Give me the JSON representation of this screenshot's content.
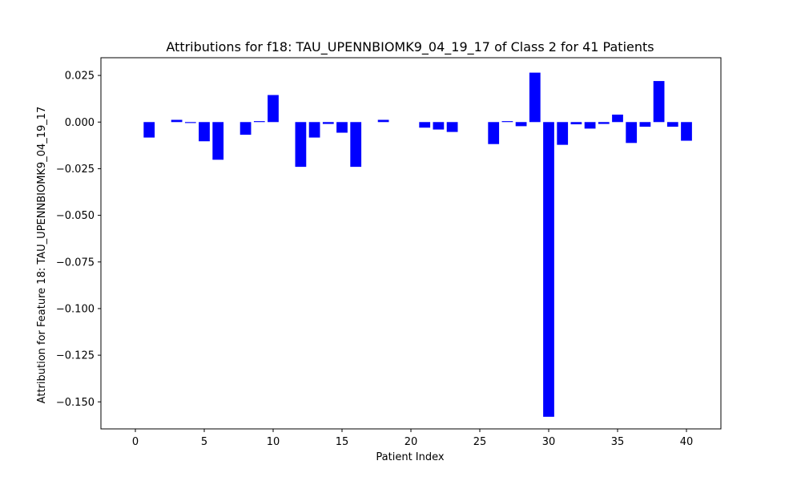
{
  "chart_data": {
    "type": "bar",
    "title": "Attributions for f18: TAU_UPENNBIOMK9_04_19_17 of Class 2 for 41 Patients",
    "xlabel": "Patient Index",
    "ylabel": "Attribution for Feature 18: TAU_UPENNBIOMK9_04_19_17",
    "xlim": [
      -2.5,
      42.5
    ],
    "ylim": [
      -0.1645,
      0.0345
    ],
    "x_ticks": [
      0,
      5,
      10,
      15,
      20,
      25,
      30,
      35,
      40
    ],
    "y_ticks": [
      0.025,
      0.0,
      -0.025,
      -0.05,
      -0.075,
      -0.1,
      -0.125,
      -0.15
    ],
    "y_tick_labels": [
      "0.025",
      "0.000",
      "−0.025",
      "−0.050",
      "−0.075",
      "−0.100",
      "−0.125",
      "−0.150"
    ],
    "bar_color": "#0000ff",
    "grid": false,
    "legend": "none",
    "x": [
      0,
      1,
      2,
      3,
      4,
      5,
      6,
      7,
      8,
      9,
      10,
      11,
      12,
      13,
      14,
      15,
      16,
      17,
      18,
      19,
      20,
      21,
      22,
      23,
      24,
      25,
      26,
      27,
      28,
      29,
      30,
      31,
      32,
      33,
      34,
      35,
      36,
      37,
      38,
      39,
      40
    ],
    "values": [
      0,
      -0.0083,
      0,
      0.0012,
      -0.0005,
      -0.0103,
      -0.0202,
      0,
      -0.0068,
      0.0005,
      0.0145,
      0,
      -0.024,
      -0.0083,
      -0.001,
      -0.0057,
      -0.024,
      0,
      0.0012,
      0,
      0,
      -0.003,
      -0.004,
      -0.0053,
      0,
      0,
      -0.0118,
      0.0005,
      -0.0022,
      0.0265,
      -0.158,
      -0.0122,
      -0.0012,
      -0.0035,
      -0.001,
      0.004,
      -0.0112,
      -0.0025,
      0.022,
      -0.0025,
      -0.01
    ]
  }
}
